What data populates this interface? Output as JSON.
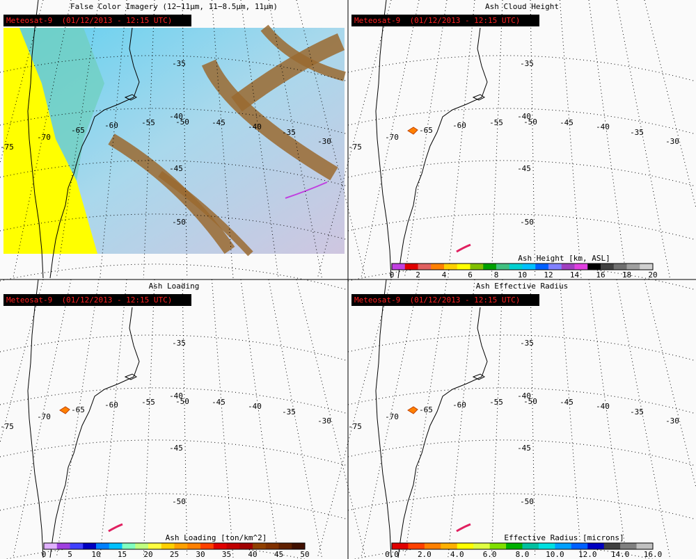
{
  "panels": [
    {
      "title": "False Color Imagery (12−11µm, 11−8.5µm, 11µm)",
      "stamp": "Meteosat-9  (01/12/2013 - 12:15 UTC)"
    },
    {
      "title": "Ash Cloud Height",
      "stamp": "Meteosat-9  (01/12/2013 - 12:15 UTC)",
      "colorbar": {
        "title": "Ash Height [km, ASL]",
        "ticks": [
          "0",
          "2",
          "4",
          "6",
          "8",
          "10",
          "12",
          "14",
          "16",
          "18",
          "20"
        ]
      }
    },
    {
      "title": "Ash Loading",
      "stamp": "Meteosat-9  (01/12/2013 - 12:15 UTC)",
      "colorbar": {
        "title": "Ash Loading [ton/km^2]",
        "ticks": [
          "0",
          "5",
          "10",
          "15",
          "20",
          "25",
          "30",
          "35",
          "40",
          "45",
          "50"
        ]
      }
    },
    {
      "title": "Ash Effective Radius",
      "stamp": "Meteosat-9  (01/12/2013 - 12:15 UTC)",
      "colorbar": {
        "title": "Effective Radius [microns]",
        "ticks": [
          "0.0",
          "2.0",
          "4.0",
          "6.0",
          "8.0",
          "10.0",
          "12.0",
          "14.0",
          "16.0"
        ]
      }
    }
  ],
  "map_labels": [
    "-35",
    "-40",
    "-45",
    "-50",
    "-75",
    "-70",
    "-65",
    "-60",
    "-55",
    "-50",
    "-45",
    "-40",
    "-35",
    "-30"
  ]
}
